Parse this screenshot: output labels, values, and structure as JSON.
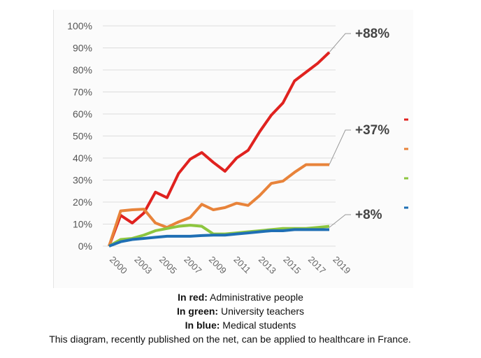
{
  "chart_data": {
    "type": "line",
    "x": [
      2000,
      2001,
      2002,
      2003,
      2004,
      2005,
      2006,
      2007,
      2008,
      2009,
      2010,
      2011,
      2012,
      2013,
      2014,
      2015,
      2016,
      2017,
      2018,
      2019
    ],
    "x_tick_labels": [
      "2000",
      "2003",
      "2005",
      "2007",
      "2009",
      "2011",
      "2013",
      "2015",
      "2017",
      "2019"
    ],
    "y_tick_labels": [
      "0%",
      "10%",
      "20%",
      "30%",
      "40%",
      "50%",
      "60%",
      "70%",
      "80%",
      "90%",
      "100%"
    ],
    "ylim": [
      0,
      100
    ],
    "grid": true,
    "series": [
      {
        "color": "#e0221f",
        "values": [
          0,
          14,
          10.5,
          15,
          24.5,
          22,
          33,
          39.5,
          42.5,
          38,
          34,
          40,
          43.5,
          52,
          59.5,
          65,
          75,
          79,
          83,
          88
        ]
      },
      {
        "color": "#e8833a",
        "values": [
          0,
          16,
          16.5,
          16.8,
          10.5,
          8.5,
          11,
          13,
          19,
          16.5,
          17.5,
          19.5,
          18.5,
          23,
          28.5,
          29.5,
          33.5,
          37,
          37,
          37
        ]
      },
      {
        "color": "#8dc63f",
        "values": [
          0,
          3,
          3.5,
          5,
          7,
          8,
          9,
          9.5,
          9,
          5.5,
          5.5,
          6,
          6.5,
          7,
          7.5,
          8,
          8,
          8,
          8.5,
          9
        ]
      },
      {
        "color": "#1f6fb4",
        "values": [
          0,
          2,
          3,
          3.5,
          4,
          4.5,
          4.5,
          4.5,
          4.8,
          5,
          5,
          5.5,
          6,
          6.5,
          7,
          7,
          7.5,
          7.5,
          7.5,
          7.5
        ]
      }
    ],
    "annotations": [
      "+88%",
      "+37%",
      "+8%"
    ],
    "legend": "right"
  },
  "caption": {
    "red_label": "In red:",
    "red_text": " Administrative people",
    "green_label": "In green:",
    "green_text": " University teachers",
    "blue_label": "In blue:",
    "blue_text": " Medical students",
    "note": "This diagram, recently published on the net, can be applied to healthcare in France."
  }
}
